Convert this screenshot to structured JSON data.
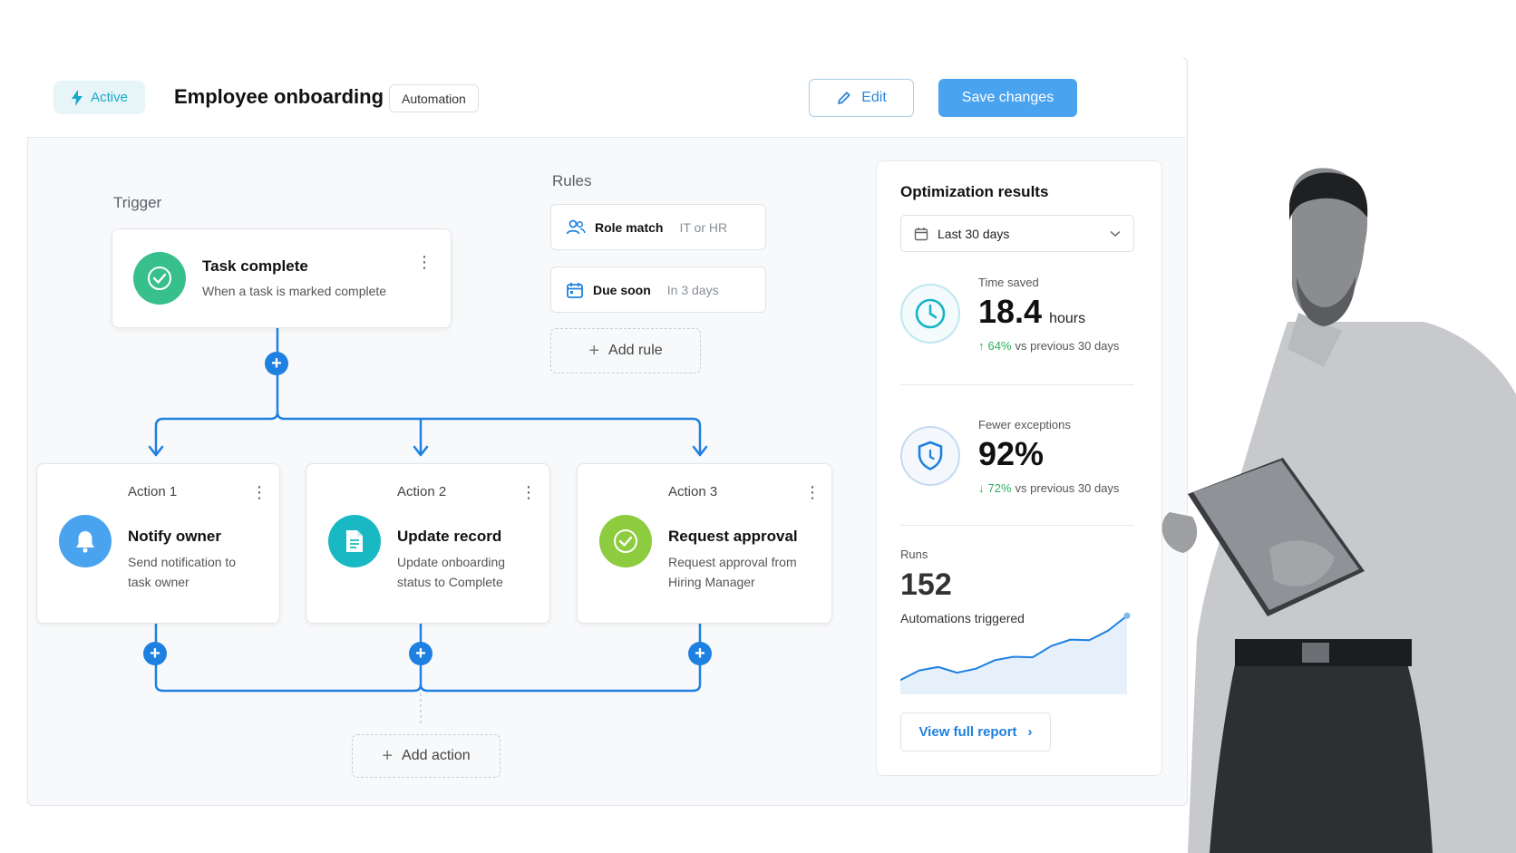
{
  "header": {
    "status": "Active",
    "title": "Employee onboarding",
    "tag": "Automation",
    "edit_label": "Edit",
    "save_label": "Save changes"
  },
  "trigger": {
    "section_label": "Trigger",
    "title": "Task complete",
    "description": "When a task is marked complete"
  },
  "rules": {
    "section_label": "Rules",
    "items": [
      {
        "name": "Role match",
        "value": "IT or HR"
      },
      {
        "name": "Due soon",
        "value": "In 3 days"
      }
    ],
    "add_label": "Add rule"
  },
  "actions": [
    {
      "label": "Action 1",
      "title": "Notify owner",
      "line1": "Send notification to",
      "line2": "task owner"
    },
    {
      "label": "Action 2",
      "title": "Update record",
      "line1": "Update onboarding",
      "line2": "status to Complete"
    },
    {
      "label": "Action 3",
      "title": "Request approval",
      "line1": "Request approval from",
      "line2": "Hiring Manager"
    }
  ],
  "add_action_label": "Add action",
  "results": {
    "title": "Optimization results",
    "period": "Last 30 days",
    "time_saved": {
      "label": "Time saved",
      "value": "18.4",
      "unit": "hours",
      "change": "64%",
      "compare": "vs previous 30 days"
    },
    "exceptions": {
      "label": "Fewer exceptions",
      "value": "92%",
      "change": "72%",
      "compare": "vs previous 30 days"
    },
    "runs": {
      "label": "Runs",
      "value": "152",
      "caption": "Automations triggered"
    },
    "report_label": "View full report"
  },
  "colors": {
    "accent": "#1e80e0",
    "teal": "#18a9c6",
    "green": "#37c08c",
    "lime": "#8dcc3f",
    "blue": "#4aa3ef"
  },
  "chart_data": {
    "type": "area",
    "title": "",
    "xlabel": "",
    "ylabel": "",
    "values": [
      0.25,
      0.42,
      0.48,
      0.38,
      0.45,
      0.6,
      0.66,
      0.65,
      0.85,
      0.96,
      0.95,
      1.12,
      1.38
    ]
  }
}
